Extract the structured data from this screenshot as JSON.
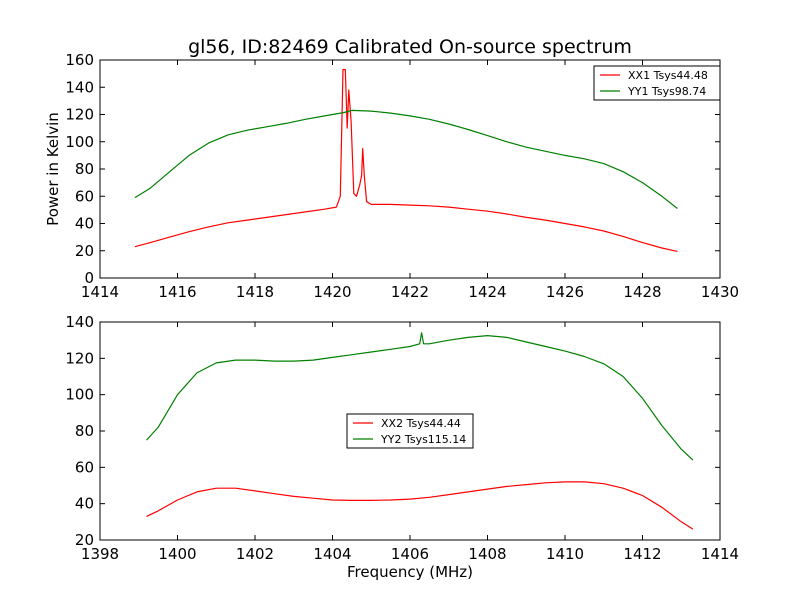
{
  "chart_data": [
    {
      "type": "line",
      "title": "gl56, ID:82469 Calibrated On-source spectrum",
      "xlabel": "",
      "ylabel": "Power in Kelvin",
      "xlim": [
        1414,
        1430
      ],
      "ylim": [
        0,
        160
      ],
      "xticks": [
        "1414",
        "1416",
        "1418",
        "1420",
        "1422",
        "1424",
        "1426",
        "1428",
        "1430"
      ],
      "yticks": [
        "0",
        "20",
        "40",
        "60",
        "80",
        "100",
        "120",
        "140",
        "160"
      ],
      "grid": false,
      "legend_position": "top-right",
      "series": [
        {
          "name": "XX1 Tsys44.48",
          "color": "#ff0000",
          "points": [
            [
              1414.9,
              23
            ],
            [
              1415.3,
              26
            ],
            [
              1415.8,
              30
            ],
            [
              1416.3,
              34
            ],
            [
              1416.8,
              37.5
            ],
            [
              1417.3,
              40.5
            ],
            [
              1417.8,
              42.5
            ],
            [
              1418.3,
              44.5
            ],
            [
              1418.8,
              46.5
            ],
            [
              1419.3,
              48.5
            ],
            [
              1419.8,
              50.5
            ],
            [
              1420.1,
              52
            ],
            [
              1420.2,
              60
            ],
            [
              1420.27,
              153
            ],
            [
              1420.33,
              153
            ],
            [
              1420.38,
              110
            ],
            [
              1420.42,
              138
            ],
            [
              1420.48,
              115
            ],
            [
              1420.55,
              62
            ],
            [
              1420.62,
              60
            ],
            [
              1420.7,
              68
            ],
            [
              1420.75,
              75
            ],
            [
              1420.78,
              95
            ],
            [
              1420.82,
              75
            ],
            [
              1420.88,
              56
            ],
            [
              1421,
              54
            ],
            [
              1421.5,
              54
            ],
            [
              1422,
              53.5
            ],
            [
              1422.5,
              53
            ],
            [
              1423,
              52
            ],
            [
              1423.5,
              50.5
            ],
            [
              1424,
              49
            ],
            [
              1424.5,
              47
            ],
            [
              1425,
              44.5
            ],
            [
              1425.5,
              42.5
            ],
            [
              1426,
              40
            ],
            [
              1426.5,
              37.5
            ],
            [
              1427,
              34.5
            ],
            [
              1427.5,
              30.5
            ],
            [
              1428,
              26
            ],
            [
              1428.5,
              22
            ],
            [
              1428.9,
              19.5
            ]
          ]
        },
        {
          "name": "YY1 Tsys98.74",
          "color": "#008000",
          "points": [
            [
              1414.9,
              59
            ],
            [
              1415.3,
              66
            ],
            [
              1415.8,
              78
            ],
            [
              1416.3,
              90
            ],
            [
              1416.8,
              99
            ],
            [
              1417.3,
              105
            ],
            [
              1417.8,
              108.5
            ],
            [
              1418.3,
              111
            ],
            [
              1418.8,
              113.5
            ],
            [
              1419.3,
              116.5
            ],
            [
              1419.8,
              119
            ],
            [
              1420.3,
              121.5
            ],
            [
              1420.5,
              123
            ],
            [
              1421,
              122.5
            ],
            [
              1421.5,
              121
            ],
            [
              1422,
              119
            ],
            [
              1422.5,
              116.5
            ],
            [
              1423,
              113
            ],
            [
              1423.5,
              109
            ],
            [
              1424,
              104.5
            ],
            [
              1424.5,
              100
            ],
            [
              1425,
              96
            ],
            [
              1425.5,
              93
            ],
            [
              1426,
              90
            ],
            [
              1426.5,
              87.5
            ],
            [
              1427,
              84
            ],
            [
              1427.5,
              78
            ],
            [
              1428,
              70
            ],
            [
              1428.5,
              60
            ],
            [
              1428.9,
              51
            ]
          ]
        }
      ]
    },
    {
      "type": "line",
      "title": "",
      "xlabel": "Frequency (MHz)",
      "ylabel": "",
      "xlim": [
        1398,
        1414
      ],
      "ylim": [
        20,
        140
      ],
      "xticks": [
        "1398",
        "1400",
        "1402",
        "1404",
        "1406",
        "1408",
        "1410",
        "1412",
        "1414"
      ],
      "yticks": [
        "20",
        "40",
        "60",
        "80",
        "100",
        "120",
        "140"
      ],
      "grid": false,
      "legend_position": "center",
      "series": [
        {
          "name": "XX2 Tsys44.44",
          "color": "#ff0000",
          "points": [
            [
              1399.2,
              33
            ],
            [
              1399.5,
              36
            ],
            [
              1400,
              42
            ],
            [
              1400.5,
              46.5
            ],
            [
              1401,
              48.5
            ],
            [
              1401.5,
              48.5
            ],
            [
              1402,
              47
            ],
            [
              1402.5,
              45.5
            ],
            [
              1403,
              44
            ],
            [
              1403.5,
              43
            ],
            [
              1404,
              42
            ],
            [
              1404.5,
              41.8
            ],
            [
              1405,
              41.8
            ],
            [
              1405.5,
              42
            ],
            [
              1406,
              42.5
            ],
            [
              1406.5,
              43.5
            ],
            [
              1407,
              45
            ],
            [
              1407.5,
              46.5
            ],
            [
              1408,
              48
            ],
            [
              1408.5,
              49.5
            ],
            [
              1409,
              50.5
            ],
            [
              1409.5,
              51.5
            ],
            [
              1410,
              52
            ],
            [
              1410.5,
              52
            ],
            [
              1411,
              51
            ],
            [
              1411.5,
              48.5
            ],
            [
              1412,
              44.5
            ],
            [
              1412.5,
              38
            ],
            [
              1413,
              30
            ],
            [
              1413.3,
              26
            ]
          ]
        },
        {
          "name": "YY2 Tsys115.14",
          "color": "#008000",
          "points": [
            [
              1399.2,
              75
            ],
            [
              1399.5,
              82
            ],
            [
              1400,
              100
            ],
            [
              1400.5,
              112
            ],
            [
              1401,
              117.5
            ],
            [
              1401.5,
              119
            ],
            [
              1402,
              119
            ],
            [
              1402.5,
              118.5
            ],
            [
              1403,
              118.5
            ],
            [
              1403.5,
              119
            ],
            [
              1404,
              120.5
            ],
            [
              1404.5,
              122
            ],
            [
              1405,
              123.5
            ],
            [
              1405.5,
              125
            ],
            [
              1406,
              126.5
            ],
            [
              1406.25,
              128
            ],
            [
              1406.3,
              134
            ],
            [
              1406.35,
              128
            ],
            [
              1406.5,
              128
            ],
            [
              1407,
              130
            ],
            [
              1407.5,
              131.5
            ],
            [
              1408,
              132.5
            ],
            [
              1408.5,
              131.5
            ],
            [
              1409,
              129
            ],
            [
              1409.5,
              126.5
            ],
            [
              1410,
              124
            ],
            [
              1410.5,
              121
            ],
            [
              1411,
              117
            ],
            [
              1411.5,
              110
            ],
            [
              1412,
              98
            ],
            [
              1412.5,
              83
            ],
            [
              1413,
              70
            ],
            [
              1413.3,
              64
            ]
          ]
        }
      ]
    }
  ]
}
